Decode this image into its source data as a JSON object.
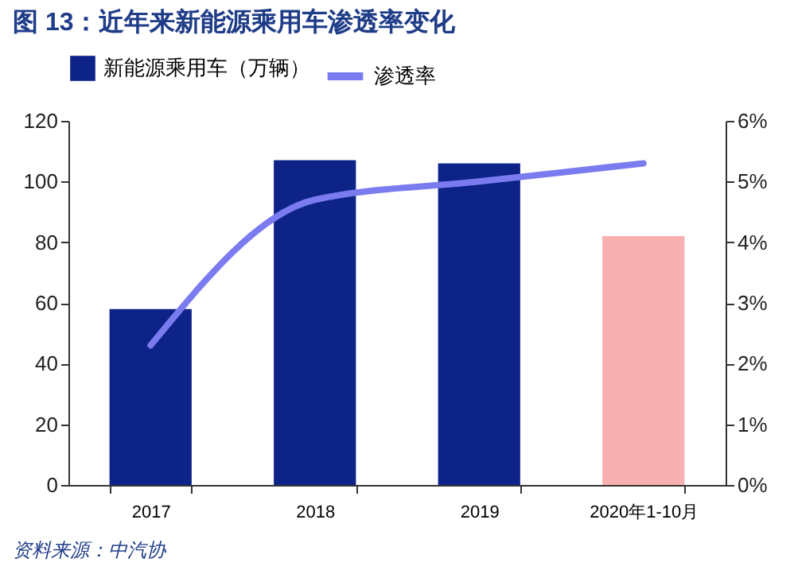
{
  "chart_data": {
    "type": "bar",
    "title": "图 13：近年来新能源乘用车渗透率变化",
    "categories": [
      "2017",
      "2018",
      "2019",
      "2020年1-10月"
    ],
    "series": [
      {
        "name": "新能源乘用车（万辆）",
        "color": "#0d2388",
        "colors": [
          "#0d2388",
          "#0d2388",
          "#0d2388",
          "#f8b0b0"
        ],
        "values": [
          58,
          107,
          106,
          82
        ]
      },
      {
        "name": "渗透率",
        "type": "line",
        "axis": "y2",
        "color": "#7b7bf0",
        "values": [
          2.3,
          4.7,
          5.0,
          5.3
        ]
      }
    ],
    "ylim": [
      0,
      120
    ],
    "yticks": [
      0,
      20,
      40,
      60,
      80,
      100,
      120
    ],
    "y2lim": [
      0,
      6
    ],
    "y2ticks": [
      {
        "value": 0,
        "label": "0%"
      },
      {
        "value": 1,
        "label": "1%"
      },
      {
        "value": 2,
        "label": "2%"
      },
      {
        "value": 3,
        "label": "3%"
      },
      {
        "value": 4,
        "label": "4%"
      },
      {
        "value": 5,
        "label": "5%"
      },
      {
        "value": 6,
        "label": "6%"
      }
    ],
    "legend": "top",
    "grid": false,
    "annotations": [
      "资料来源：中汽协"
    ]
  }
}
